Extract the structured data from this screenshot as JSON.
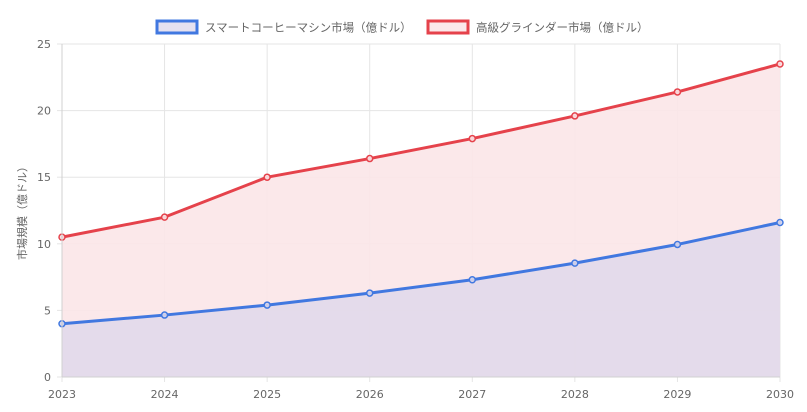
{
  "chart_data": {
    "type": "area",
    "title": "",
    "xlabel": "",
    "ylabel": "市場規模（億ドル）",
    "ylim": [
      0,
      25
    ],
    "yticks": [
      0,
      5,
      10,
      15,
      20,
      25
    ],
    "grid": true,
    "legend": "top-center",
    "x": [
      "2023",
      "2024",
      "2025",
      "2026",
      "2027",
      "2028",
      "2029",
      "2030"
    ],
    "series": [
      {
        "name": "スマートコーヒーマシン市場（億ドル）",
        "values": [
          4.0,
          4.65,
          5.4,
          6.3,
          7.3,
          8.55,
          9.95,
          11.6
        ],
        "color": "#4178e0",
        "fill": "rgba(220, 215, 235, 0.75)"
      },
      {
        "name": "高級グラインダー市場（億ドル）",
        "values": [
          10.5,
          12.0,
          15.0,
          16.4,
          17.9,
          19.6,
          21.4,
          23.5
        ],
        "color": "#e5424b",
        "fill": "rgba(251, 230, 232, 0.9)"
      }
    ]
  }
}
